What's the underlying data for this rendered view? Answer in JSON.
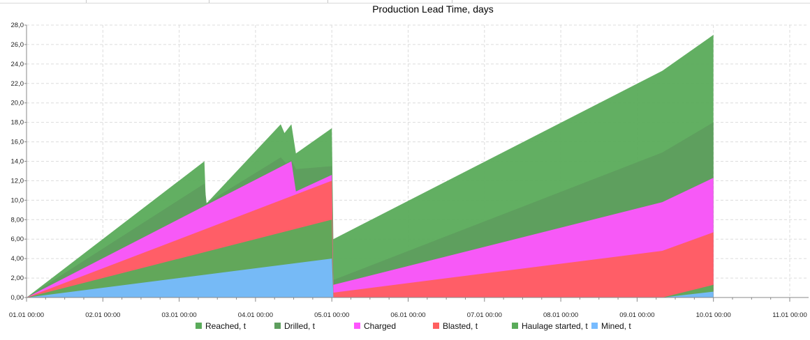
{
  "chart_data": {
    "type": "area",
    "title": "Production Lead Time, days",
    "xlabel": "",
    "ylabel": "",
    "ylim": [
      0,
      28
    ],
    "yticks": [
      "0,00",
      "2,00",
      "4,00",
      "6,00",
      "8,00",
      "10,0",
      "12,0",
      "14,0",
      "16,0",
      "18,0",
      "20,0",
      "22,0",
      "24,0",
      "26,0",
      "28,0"
    ],
    "xlim": [
      0,
      10.3
    ],
    "xticks": [
      "01.01 00:00",
      "02.01 00:00",
      "03.01 00:00",
      "04.01 00:00",
      "05.01 00:00",
      "06.01 00:00",
      "07.01 00:00",
      "08.01 00:00",
      "09.01 00:00",
      "10.01 00:00",
      "11.01 00:00"
    ],
    "grid": true,
    "legend_position": "bottom",
    "stacking": "overlay",
    "series": [
      {
        "name": "Reached, t",
        "color": "#5aab5a",
        "points": [
          [
            0,
            0
          ],
          [
            2.33,
            14.0
          ],
          [
            2.35,
            9.6
          ],
          [
            3.33,
            17.8
          ],
          [
            3.38,
            16.9
          ],
          [
            3.47,
            17.8
          ],
          [
            3.53,
            14.8
          ],
          [
            4.0,
            17.4
          ],
          [
            4.02,
            6.0
          ],
          [
            8.33,
            23.3
          ],
          [
            9.0,
            27.0
          ],
          [
            9.0,
            0
          ]
        ]
      },
      {
        "name": "Drilled, t",
        "color": "#5e9e5e",
        "points": [
          [
            0,
            0
          ],
          [
            2.33,
            11.7
          ],
          [
            2.36,
            9.7
          ],
          [
            3.33,
            14.4
          ],
          [
            3.4,
            13.8
          ],
          [
            3.47,
            14.1
          ],
          [
            3.53,
            13.2
          ],
          [
            4.0,
            13.5
          ],
          [
            4.02,
            1.8
          ],
          [
            8.33,
            14.9
          ],
          [
            9.0,
            18.0
          ],
          [
            9.0,
            0
          ]
        ]
      },
      {
        "name": "Charged",
        "color": "#ff55ff",
        "points": [
          [
            0,
            0
          ],
          [
            3.47,
            14.0
          ],
          [
            3.53,
            10.9
          ],
          [
            4.0,
            12.6
          ],
          [
            4.02,
            1.3
          ],
          [
            8.33,
            9.8
          ],
          [
            9.0,
            12.3
          ],
          [
            9.0,
            0
          ]
        ]
      },
      {
        "name": "Blasted, t",
        "color": "#ff5f5f",
        "points": [
          [
            0,
            0
          ],
          [
            4.0,
            12.0
          ],
          [
            4.02,
            0.5
          ],
          [
            8.33,
            4.8
          ],
          [
            9.0,
            6.7
          ],
          [
            9.0,
            0
          ]
        ]
      },
      {
        "name": "Haulage started, t",
        "color": "#5aab5a",
        "points": [
          [
            0,
            0
          ],
          [
            4.0,
            8.0
          ],
          [
            4.02,
            0
          ],
          [
            8.33,
            0
          ],
          [
            9.0,
            1.3
          ],
          [
            9.0,
            0
          ]
        ]
      },
      {
        "name": "Mined, t",
        "color": "#77bbff",
        "points": [
          [
            0,
            0
          ],
          [
            4.0,
            4.0
          ],
          [
            4.02,
            0
          ],
          [
            8.33,
            0
          ],
          [
            9.0,
            0.6
          ],
          [
            9.0,
            0
          ]
        ]
      }
    ]
  }
}
